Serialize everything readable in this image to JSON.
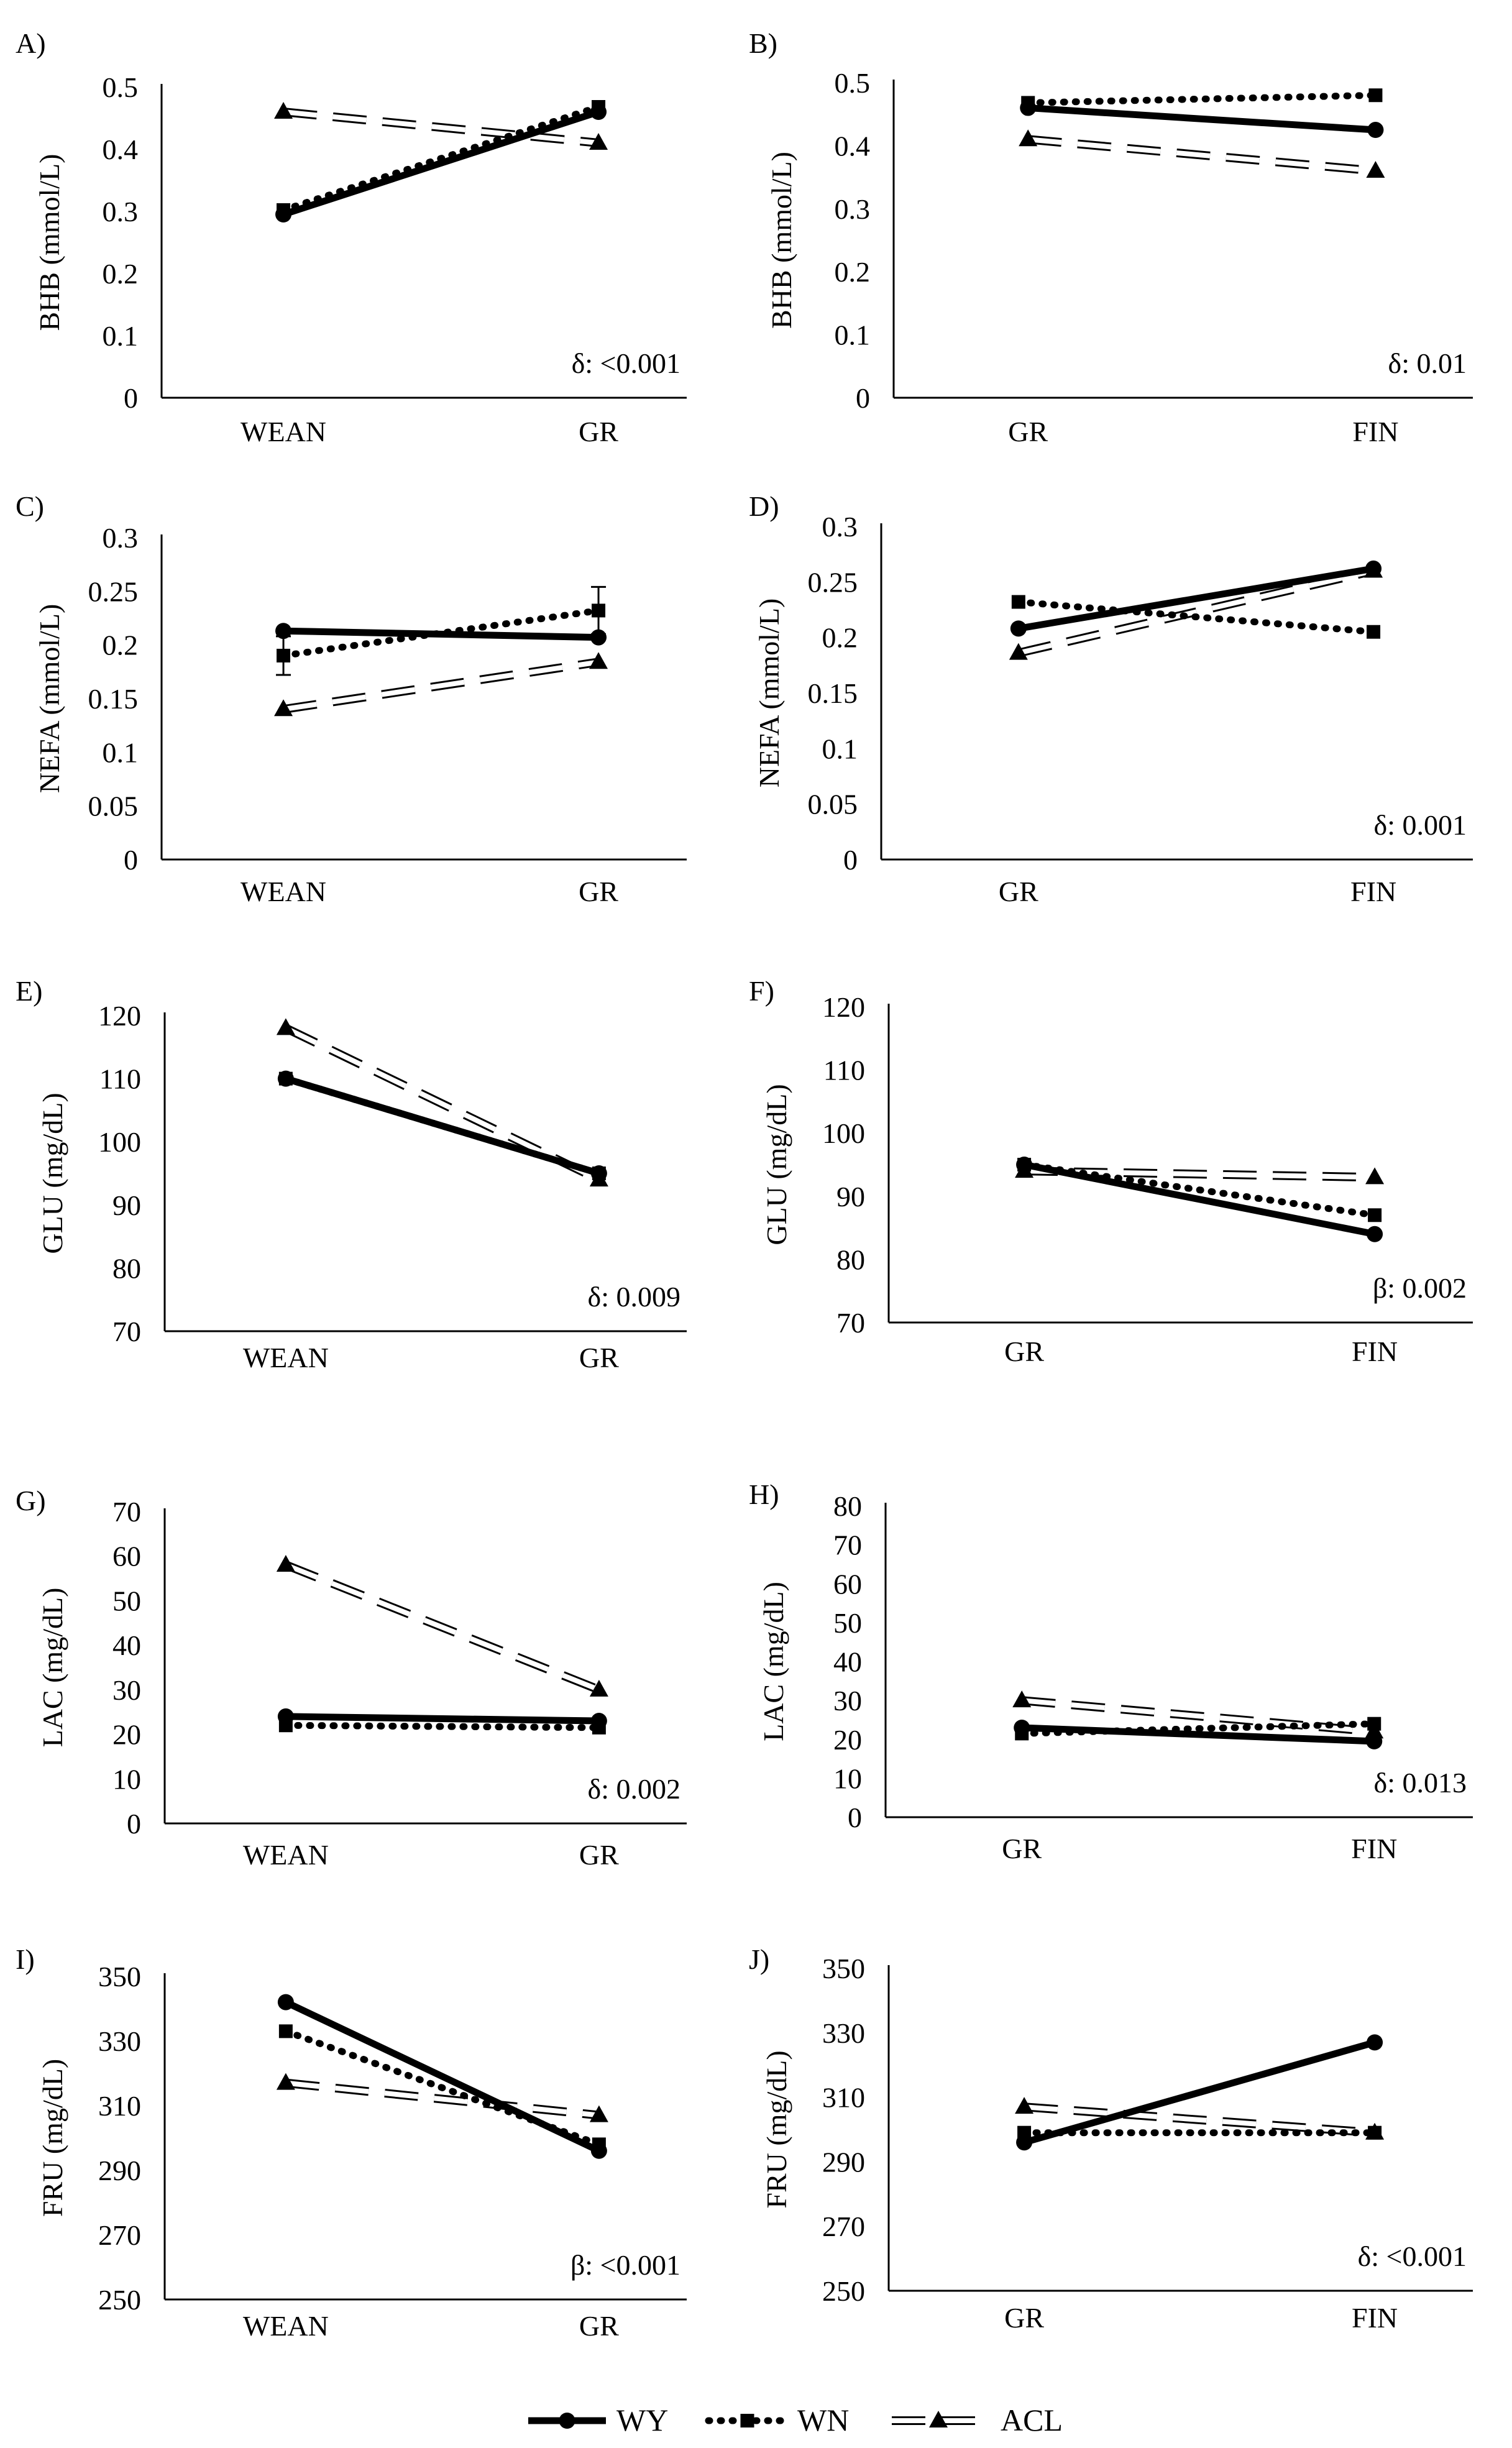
{
  "legend": {
    "entries": [
      {
        "name": "WY",
        "style": "solid",
        "marker": "circle"
      },
      {
        "name": "WN",
        "style": "dotted",
        "marker": "square"
      },
      {
        "name": "ACL",
        "style": "dashed",
        "marker": "triangle"
      }
    ]
  },
  "colors": {
    "ink": "#000000",
    "background": "#ffffff"
  },
  "chart_data": [
    {
      "panel": "A)",
      "type": "line",
      "ylabel": "BHB (mmol/L)",
      "categories": [
        "WEAN",
        "GR"
      ],
      "ylim": [
        0,
        0.5
      ],
      "yticks": [
        "0",
        "0.1",
        "0.2",
        "0.3",
        "0.4",
        "0.5"
      ],
      "annotation": "δ: <0.001",
      "series": [
        {
          "name": "WY",
          "values": [
            0.295,
            0.46
          ]
        },
        {
          "name": "WN",
          "values": [
            0.302,
            0.468
          ]
        },
        {
          "name": "ACL",
          "values": [
            0.46,
            0.41
          ]
        }
      ]
    },
    {
      "panel": "B)",
      "type": "line",
      "ylabel": "BHB (mmol/L)",
      "categories": [
        "GR",
        "FIN"
      ],
      "ylim": [
        0,
        0.5
      ],
      "yticks": [
        "0",
        "0.1",
        "0.2",
        "0.3",
        "0.4",
        "0.5"
      ],
      "annotation": "δ: 0.01",
      "series": [
        {
          "name": "WY",
          "values": [
            0.46,
            0.425
          ]
        },
        {
          "name": "WN",
          "values": [
            0.468,
            0.48
          ]
        },
        {
          "name": "ACL",
          "values": [
            0.41,
            0.36
          ]
        }
      ]
    },
    {
      "panel": "C)",
      "type": "line",
      "ylabel": "NEFA (mmol/L)",
      "categories": [
        "WEAN",
        "GR"
      ],
      "ylim": [
        0,
        0.3
      ],
      "yticks": [
        "0",
        "0.05",
        "0.1",
        "0.15",
        "0.2",
        "0.25",
        "0.3"
      ],
      "annotation": "",
      "series": [
        {
          "name": "WY",
          "values": [
            0.213,
            0.207
          ],
          "err": [
            0,
            0
          ]
        },
        {
          "name": "WN",
          "values": [
            0.19,
            0.232
          ],
          "err": [
            0.018,
            0.022
          ]
        },
        {
          "name": "ACL",
          "values": [
            0.14,
            0.184
          ]
        }
      ]
    },
    {
      "panel": "D)",
      "type": "line",
      "ylabel": "NEFA (mmol/L)",
      "categories": [
        "GR",
        "FIN"
      ],
      "ylim": [
        0,
        0.3
      ],
      "yticks": [
        "0",
        "0.05",
        "0.1",
        "0.15",
        "0.2",
        "0.25",
        "0.3"
      ],
      "annotation": "δ: 0.001",
      "series": [
        {
          "name": "WY",
          "values": [
            0.208,
            0.262
          ]
        },
        {
          "name": "WN",
          "values": [
            0.232,
            0.205
          ]
        },
        {
          "name": "ACL",
          "values": [
            0.186,
            0.26
          ]
        }
      ]
    },
    {
      "panel": "E)",
      "type": "line",
      "ylabel": "GLU (mg/dL)",
      "categories": [
        "WEAN",
        "GR"
      ],
      "ylim": [
        70,
        120
      ],
      "yticks": [
        "70",
        "80",
        "90",
        "100",
        "110",
        "120"
      ],
      "annotation": "δ: 0.009",
      "series": [
        {
          "name": "WY",
          "values": [
            110,
            95
          ]
        },
        {
          "name": "WN",
          "values": [
            110,
            95
          ]
        },
        {
          "name": "ACL",
          "values": [
            118,
            94
          ]
        }
      ]
    },
    {
      "panel": "F)",
      "type": "line",
      "ylabel": "GLU (mg/dL)",
      "categories": [
        "GR",
        "FIN"
      ],
      "ylim": [
        70,
        120
      ],
      "yticks": [
        "70",
        "80",
        "90",
        "100",
        "110",
        "120"
      ],
      "annotation": "β: 0.002",
      "series": [
        {
          "name": "WY",
          "values": [
            95,
            84
          ]
        },
        {
          "name": "WN",
          "values": [
            95,
            87
          ]
        },
        {
          "name": "ACL",
          "values": [
            94,
            93
          ]
        }
      ]
    },
    {
      "panel": "G)",
      "type": "line",
      "ylabel": "LAC (mg/dL)",
      "categories": [
        "WEAN",
        "GR"
      ],
      "ylim": [
        0,
        70
      ],
      "yticks": [
        "0",
        "10",
        "20",
        "30",
        "40",
        "50",
        "60",
        "70"
      ],
      "annotation": "δ: 0.002",
      "series": [
        {
          "name": "WY",
          "values": [
            24,
            23
          ]
        },
        {
          "name": "WN",
          "values": [
            22,
            21.5
          ]
        },
        {
          "name": "ACL",
          "values": [
            58,
            30
          ]
        }
      ]
    },
    {
      "panel": "H)",
      "type": "line",
      "ylabel": "LAC (mg/dL)",
      "categories": [
        "GR",
        "FIN"
      ],
      "ylim": [
        0,
        80
      ],
      "yticks": [
        "0",
        "10",
        "20",
        "30",
        "40",
        "50",
        "60",
        "70",
        "80"
      ],
      "annotation": "δ: 0.013",
      "series": [
        {
          "name": "WY",
          "values": [
            23,
            19.5
          ]
        },
        {
          "name": "WN",
          "values": [
            21.5,
            24
          ]
        },
        {
          "name": "ACL",
          "values": [
            30,
            22
          ]
        }
      ]
    },
    {
      "panel": "I)",
      "type": "line",
      "ylabel": "FRU (mg/dL)",
      "categories": [
        "WEAN",
        "GR"
      ],
      "ylim": [
        250,
        350
      ],
      "yticks": [
        "250",
        "270",
        "290",
        "310",
        "330",
        "350"
      ],
      "annotation": "β: <0.001",
      "series": [
        {
          "name": "WY",
          "values": [
            342,
            296
          ]
        },
        {
          "name": "WN",
          "values": [
            333,
            298
          ]
        },
        {
          "name": "ACL",
          "values": [
            317,
            307
          ]
        }
      ]
    },
    {
      "panel": "J)",
      "type": "line",
      "ylabel": "FRU (mg/dL)",
      "categories": [
        "GR",
        "FIN"
      ],
      "ylim": [
        250,
        350
      ],
      "yticks": [
        "250",
        "270",
        "290",
        "310",
        "330",
        "350"
      ],
      "annotation": "δ: <0.001",
      "series": [
        {
          "name": "WY",
          "values": [
            296,
            327
          ]
        },
        {
          "name": "WN",
          "values": [
            299,
            299
          ]
        },
        {
          "name": "ACL",
          "values": [
            307,
            299
          ]
        }
      ]
    }
  ]
}
